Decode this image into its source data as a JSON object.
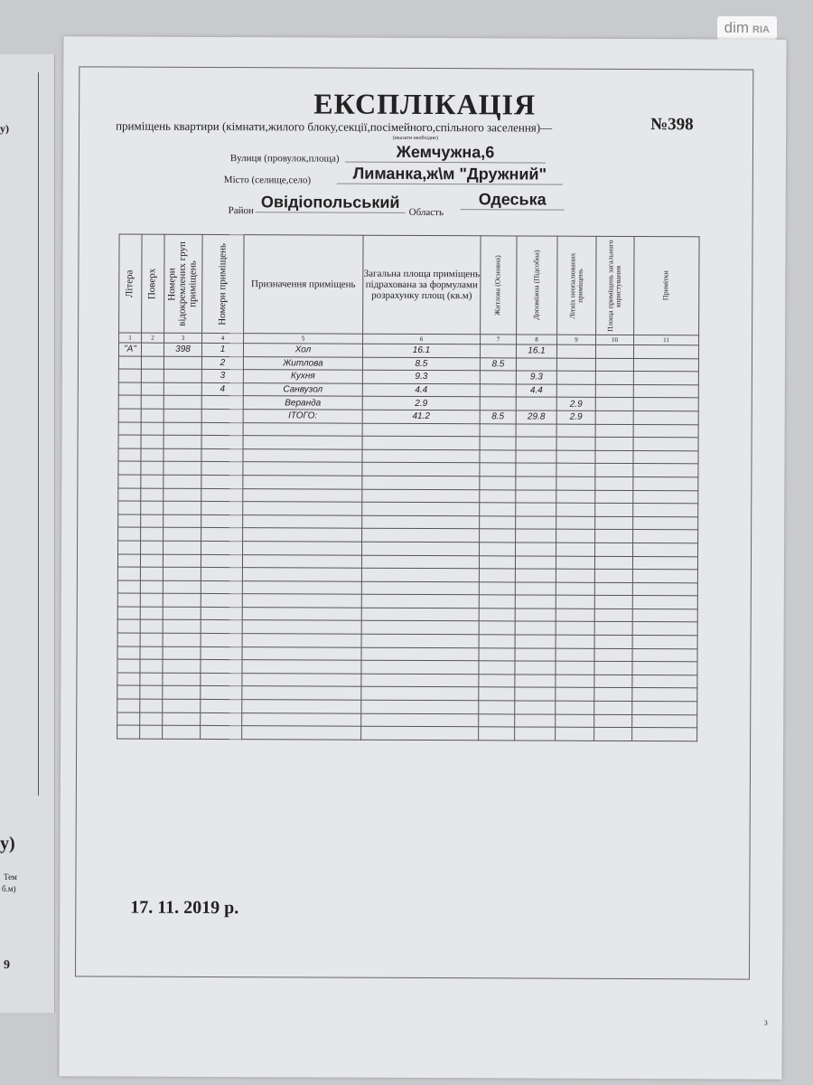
{
  "watermark": {
    "brand": "dim",
    "sub": "RIA"
  },
  "left_document": {
    "fragments": [
      "у)",
      "Тем",
      "б.м)",
      "9"
    ]
  },
  "document": {
    "title": "ЕКСПЛІКАЦІЯ",
    "subtitle": "приміщень квартири (кімнати,жилого блоку,секції,посімейного,спільного заселення)—",
    "subtitle_hint": "(вказати необхідне)",
    "number": "№398",
    "street_label": "Вулиця (провулок,площа)",
    "street_value": "Жемчужна,6",
    "city_label": "Місто (селище,село)",
    "city_value": "Лиманка,ж\\м \"Дружний\"",
    "district_label": "Район",
    "district_value": "Овідіопольський",
    "region_label": "Область",
    "region_value": "Одеська",
    "date": "17. 11. 2019 р.",
    "page_number": "3"
  },
  "table": {
    "headers": [
      "Літера",
      "Поверх",
      "Номери відокремлених груп приміщень",
      "Номери приміщень",
      "Призначення приміщень",
      "Загальна площа приміщень підрахована за формулами розрахунку площ (кв.м)",
      "Житлова (Основна)",
      "Допоміжна (Підсобна)",
      "Літніх неопалюваних приміщень",
      "Площа приміщень загального користування",
      "Примітки"
    ],
    "column_numbers": [
      "1",
      "2",
      "3",
      "4",
      "5",
      "6",
      "7",
      "8",
      "9",
      "10",
      "11"
    ],
    "rows": [
      [
        "\"А\"",
        "",
        "398",
        "1",
        "Хол",
        "16.1",
        "",
        "16.1",
        "",
        "",
        ""
      ],
      [
        "",
        "",
        "",
        "2",
        "Житлова",
        "8.5",
        "8.5",
        "",
        "",
        "",
        ""
      ],
      [
        "",
        "",
        "",
        "3",
        "Кухня",
        "9.3",
        "",
        "9.3",
        "",
        "",
        ""
      ],
      [
        "",
        "",
        "",
        "4",
        "Санвузол",
        "4.4",
        "",
        "4.4",
        "",
        "",
        ""
      ],
      [
        "",
        "",
        "",
        "",
        "Веранда",
        "2.9",
        "",
        "",
        "2.9",
        "",
        ""
      ],
      [
        "",
        "",
        "",
        "",
        "ІТОГО:",
        "41.2",
        "8.5",
        "29.8",
        "2.9",
        "",
        ""
      ]
    ]
  }
}
